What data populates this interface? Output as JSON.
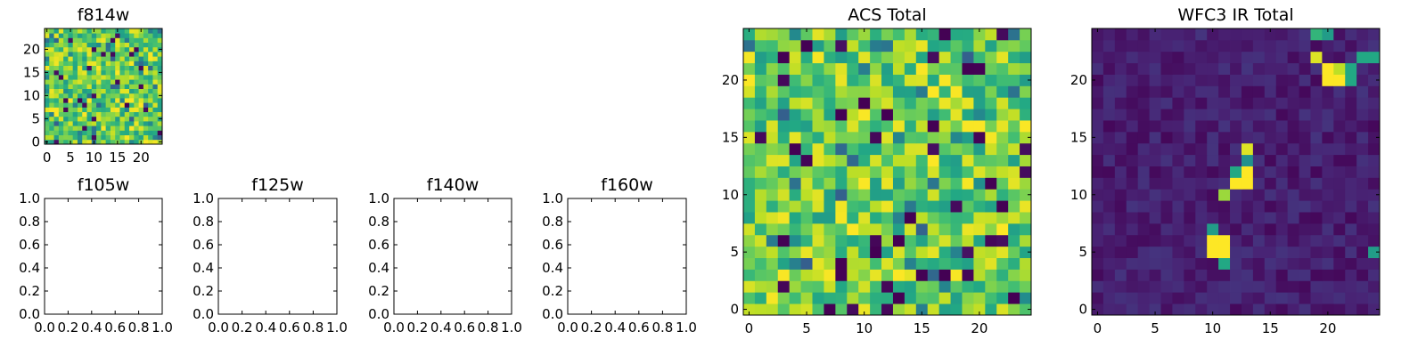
{
  "chart_data": [
    {
      "id": "f814w",
      "type": "heatmap",
      "title": "f814w",
      "xlim": [
        0,
        25
      ],
      "ylim": [
        0,
        25
      ],
      "xticks": [
        "0",
        "5",
        "10",
        "15",
        "20"
      ],
      "yticks": [
        "0",
        "5",
        "10",
        "15",
        "20"
      ],
      "grid_size": 25,
      "colormap": "viridis",
      "content": "noise",
      "seed": 814
    },
    {
      "id": "f105w",
      "type": "empty",
      "title": "f105w",
      "xlim": [
        0,
        1
      ],
      "ylim": [
        0,
        1
      ],
      "xticks": [
        "0.0",
        "0.2",
        "0.4",
        "0.6",
        "0.8",
        "1.0"
      ],
      "yticks": [
        "0.0",
        "0.2",
        "0.4",
        "0.6",
        "0.8",
        "1.0"
      ]
    },
    {
      "id": "f125w",
      "type": "empty",
      "title": "f125w",
      "xlim": [
        0,
        1
      ],
      "ylim": [
        0,
        1
      ],
      "xticks": [
        "0.0",
        "0.2",
        "0.4",
        "0.6",
        "0.8",
        "1.0"
      ],
      "yticks": [
        "0.0",
        "0.2",
        "0.4",
        "0.6",
        "0.8",
        "1.0"
      ]
    },
    {
      "id": "f140w",
      "type": "empty",
      "title": "f140w",
      "xlim": [
        0,
        1
      ],
      "ylim": [
        0,
        1
      ],
      "xticks": [
        "0.0",
        "0.2",
        "0.4",
        "0.6",
        "0.8",
        "1.0"
      ],
      "yticks": [
        "0.0",
        "0.2",
        "0.4",
        "0.6",
        "0.8",
        "1.0"
      ]
    },
    {
      "id": "f160w",
      "type": "empty",
      "title": "f160w",
      "xlim": [
        0,
        1
      ],
      "ylim": [
        0,
        1
      ],
      "xticks": [
        "0.0",
        "0.2",
        "0.4",
        "0.6",
        "0.8",
        "1.0"
      ],
      "yticks": [
        "0.0",
        "0.2",
        "0.4",
        "0.6",
        "0.8",
        "1.0"
      ]
    },
    {
      "id": "acs_total",
      "type": "heatmap",
      "title": "ACS Total",
      "xlim": [
        0,
        25
      ],
      "ylim": [
        0,
        25
      ],
      "xticks": [
        "0",
        "5",
        "10",
        "15",
        "20"
      ],
      "yticks": [
        "0",
        "5",
        "10",
        "15",
        "20"
      ],
      "grid_size": 25,
      "colormap": "viridis",
      "content": "noise",
      "seed": 2024,
      "dark_pixels": [
        [
          13,
          1
        ],
        [
          7,
          0
        ],
        [
          23,
          1
        ],
        [
          8,
          4
        ],
        [
          17,
          3
        ],
        [
          13,
          6
        ],
        [
          11,
          5
        ],
        [
          21,
          11
        ],
        [
          14,
          8
        ],
        [
          16,
          16
        ],
        [
          10,
          18
        ],
        [
          12,
          17
        ],
        [
          19,
          21
        ],
        [
          3,
          22
        ],
        [
          22,
          9
        ],
        [
          5,
          23
        ],
        [
          4,
          14
        ]
      ]
    },
    {
      "id": "wfc3_ir_total",
      "type": "heatmap",
      "title": "WFC3 IR Total",
      "xlim": [
        0,
        25
      ],
      "ylim": [
        0,
        25
      ],
      "xticks": [
        "0",
        "5",
        "10",
        "15",
        "20"
      ],
      "yticks": [
        "0",
        "5",
        "10",
        "15",
        "20"
      ],
      "grid_size": 25,
      "colormap": "viridis",
      "content": "sources",
      "seed": 314,
      "bright_pixels": [
        [
          10,
          5,
          1.0
        ],
        [
          11,
          5,
          1.0
        ],
        [
          10,
          6,
          1.0
        ],
        [
          11,
          6,
          1.0
        ],
        [
          10,
          7,
          0.55
        ],
        [
          11,
          4,
          0.6
        ],
        [
          12,
          11,
          1.0
        ],
        [
          13,
          11,
          1.0
        ],
        [
          13,
          12,
          1.0
        ],
        [
          12,
          12,
          0.6
        ],
        [
          11,
          10,
          0.85
        ],
        [
          13,
          14,
          0.95
        ],
        [
          13,
          13,
          0.5
        ],
        [
          20,
          20,
          1.0
        ],
        [
          21,
          20,
          1.0
        ],
        [
          20,
          21,
          1.0
        ],
        [
          21,
          21,
          0.9
        ],
        [
          22,
          20,
          0.6
        ],
        [
          19,
          22,
          0.95
        ],
        [
          23,
          22,
          0.6
        ],
        [
          24,
          22,
          0.6
        ],
        [
          22,
          21,
          0.6
        ],
        [
          19,
          24,
          0.65
        ],
        [
          20,
          24,
          0.55
        ],
        [
          24,
          5,
          0.55
        ]
      ]
    }
  ]
}
